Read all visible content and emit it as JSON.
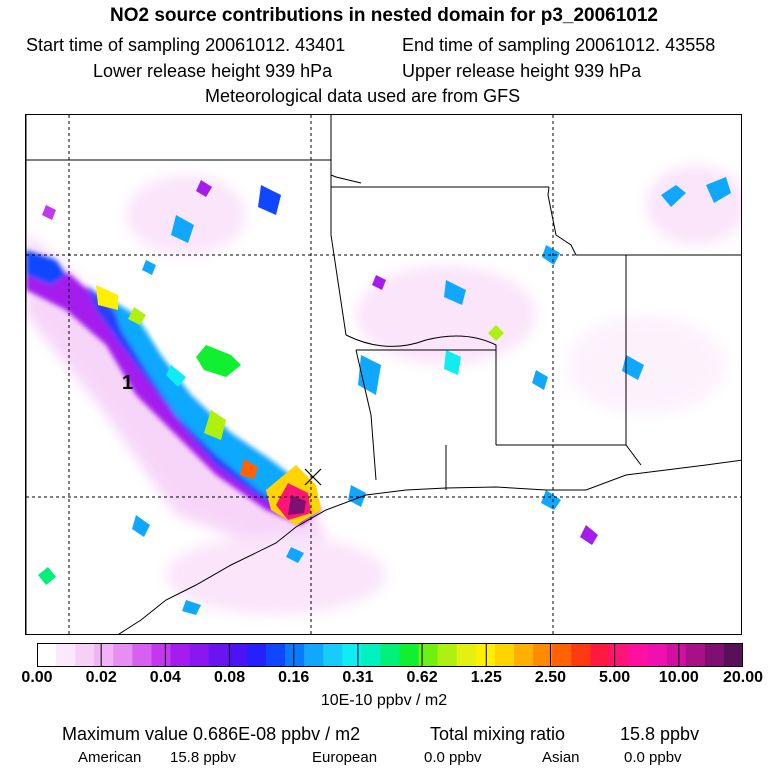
{
  "header": {
    "title": "NO2 source contributions in nested domain for p3_20061012",
    "start_label": "Start time of sampling 20061012. 43401",
    "end_label": "End time of sampling 20061012. 43558",
    "lower_label": "Lower release height  939 hPa",
    "upper_label": "Upper release height  939 hPa",
    "met_label": "Meteorological data used are from GFS"
  },
  "map": {
    "source_marker": "1",
    "max_marker_icon": "x-mark-icon"
  },
  "colorbar": {
    "ticks": [
      "0.00",
      "0.02",
      "0.04",
      "0.08",
      "0.16",
      "0.31",
      "0.62",
      "1.25",
      "2.50",
      "5.00",
      "10.00",
      "20.00"
    ],
    "units": "10E-10 ppbv / m2",
    "colors": [
      "#ffffff",
      "#fbe8fb",
      "#f7d0f7",
      "#f0b4f4",
      "#e68ef2",
      "#d860f0",
      "#c238ee",
      "#a41cee",
      "#8a16f0",
      "#6a14f2",
      "#4a14f6",
      "#2820fa",
      "#1046ff",
      "#0a78ff",
      "#10a8ff",
      "#16ccff",
      "#10ecf4",
      "#00f0c0",
      "#00f078",
      "#10f030",
      "#70f010",
      "#b0f010",
      "#e4f010",
      "#fff000",
      "#ffd400",
      "#ffb000",
      "#ff8c00",
      "#ff6200",
      "#ff3a10",
      "#ff1840",
      "#ff1478",
      "#ff10a0",
      "#f010b0",
      "#d010a0",
      "#a81088",
      "#801070",
      "#581058"
    ]
  },
  "footer": {
    "max_label": "Maximum value  0.686E-08 ppbv / m2",
    "total_label": "Total mixing ratio",
    "total_value": "15.8 ppbv",
    "american_label": "American",
    "american_value": "15.8 ppbv",
    "european_label": "European",
    "european_value": "0.0 ppbv",
    "asian_label": "Asian",
    "asian_value": "0.0 ppbv"
  }
}
